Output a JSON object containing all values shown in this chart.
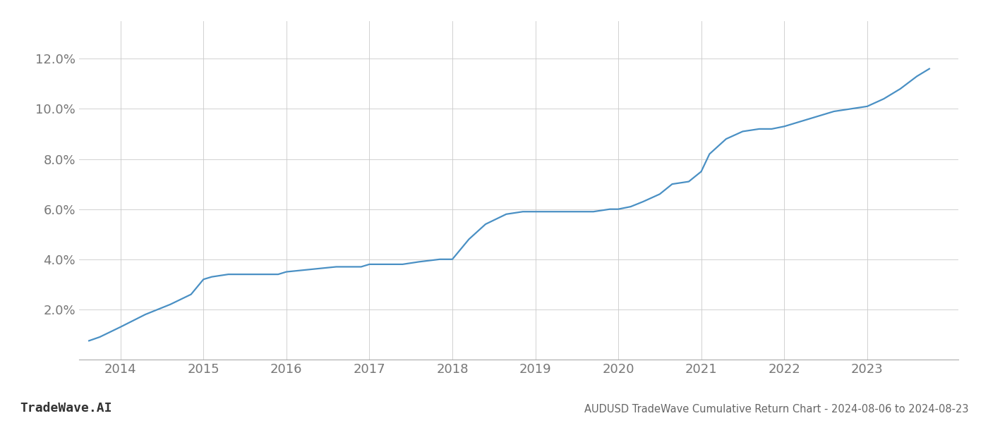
{
  "title": "AUDUSD TradeWave Cumulative Return Chart - 2024-08-06 to 2024-08-23",
  "watermark": "TradeWave.AI",
  "line_color": "#4a90c4",
  "background_color": "#ffffff",
  "grid_color": "#cccccc",
  "x_values": [
    2013.62,
    2013.75,
    2014.0,
    2014.3,
    2014.6,
    2014.85,
    2015.0,
    2015.1,
    2015.3,
    2015.6,
    2015.9,
    2016.0,
    2016.3,
    2016.6,
    2016.9,
    2017.0,
    2017.1,
    2017.4,
    2017.6,
    2017.85,
    2018.0,
    2018.05,
    2018.2,
    2018.4,
    2018.65,
    2018.85,
    2019.0,
    2019.1,
    2019.3,
    2019.5,
    2019.7,
    2019.9,
    2020.0,
    2020.15,
    2020.3,
    2020.5,
    2020.65,
    2020.85,
    2021.0,
    2021.1,
    2021.3,
    2021.5,
    2021.7,
    2021.85,
    2022.0,
    2022.2,
    2022.4,
    2022.6,
    2022.8,
    2023.0,
    2023.2,
    2023.4,
    2023.6,
    2023.75
  ],
  "y_values": [
    0.0075,
    0.009,
    0.013,
    0.018,
    0.022,
    0.026,
    0.032,
    0.033,
    0.034,
    0.034,
    0.034,
    0.035,
    0.036,
    0.037,
    0.037,
    0.038,
    0.038,
    0.038,
    0.039,
    0.04,
    0.04,
    0.042,
    0.048,
    0.054,
    0.058,
    0.059,
    0.059,
    0.059,
    0.059,
    0.059,
    0.059,
    0.06,
    0.06,
    0.061,
    0.063,
    0.066,
    0.07,
    0.071,
    0.075,
    0.082,
    0.088,
    0.091,
    0.092,
    0.092,
    0.093,
    0.095,
    0.097,
    0.099,
    0.1,
    0.101,
    0.104,
    0.108,
    0.113,
    0.116
  ],
  "xlim": [
    2013.5,
    2024.1
  ],
  "ylim": [
    0.0,
    0.135
  ],
  "yticks": [
    0.02,
    0.04,
    0.06,
    0.08,
    0.1,
    0.12
  ],
  "ytick_labels": [
    "2.0%",
    "4.0%",
    "6.0%",
    "8.0%",
    "10.0%",
    "12.0%"
  ],
  "xticks": [
    2014,
    2015,
    2016,
    2017,
    2018,
    2019,
    2020,
    2021,
    2022,
    2023
  ],
  "xtick_labels": [
    "2014",
    "2015",
    "2016",
    "2017",
    "2018",
    "2019",
    "2020",
    "2021",
    "2022",
    "2023"
  ],
  "line_width": 1.6,
  "title_fontsize": 10.5,
  "tick_fontsize": 13,
  "watermark_fontsize": 13
}
